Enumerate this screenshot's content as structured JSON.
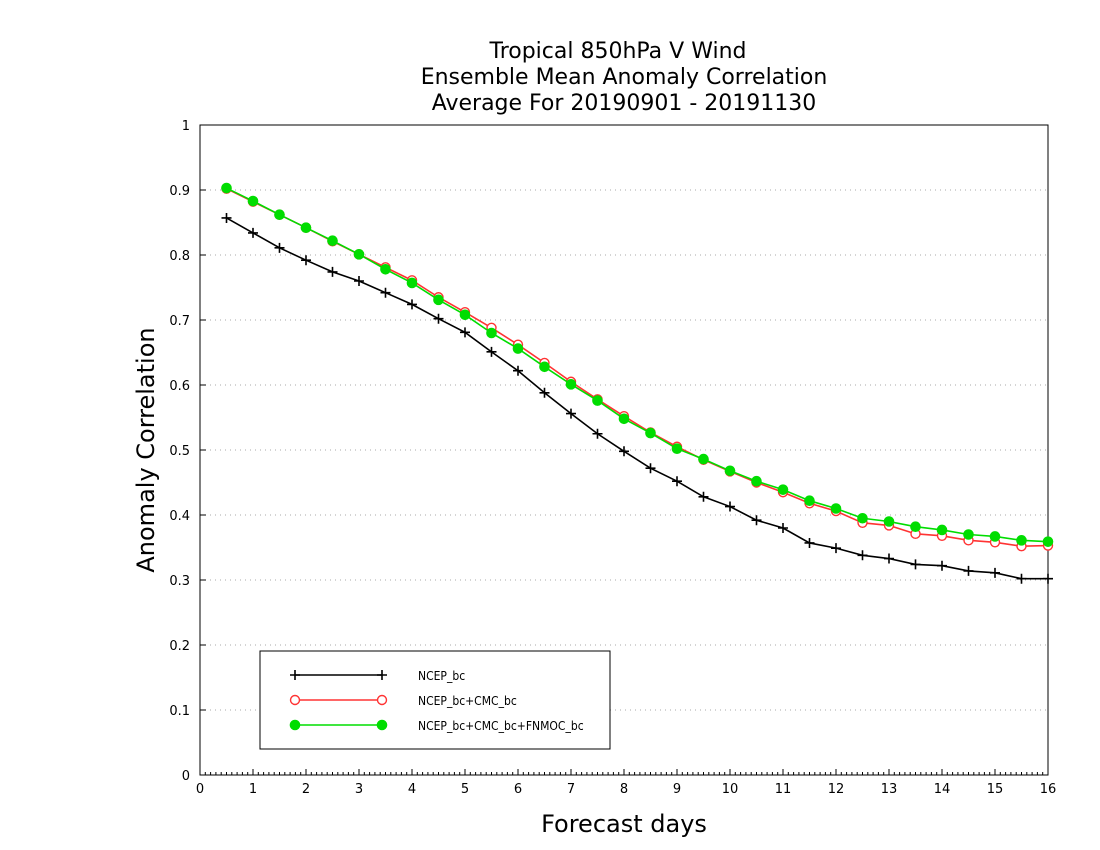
{
  "chart_data": {
    "type": "line",
    "title_lines": [
      "Tropical 850hPa V Wind",
      "Ensemble Mean Anomaly Correlation",
      "Average For 20190901 - 20191130"
    ],
    "xlabel": "Forecast days",
    "ylabel": "Anomaly Correlation",
    "xlim": [
      0,
      16
    ],
    "ylim": [
      0,
      1
    ],
    "xticks": [
      0,
      1,
      2,
      3,
      4,
      5,
      6,
      7,
      8,
      9,
      10,
      11,
      12,
      13,
      14,
      15,
      16
    ],
    "xtick_labels": [
      "0",
      "1",
      "2",
      "3",
      "4",
      "5",
      "6",
      "7",
      "8",
      "9",
      "10",
      "11",
      "12",
      "13",
      "14",
      "15",
      "16"
    ],
    "yticks": [
      0,
      0.1,
      0.2,
      0.3,
      0.4,
      0.5,
      0.6,
      0.7,
      0.8,
      0.9,
      1
    ],
    "ytick_labels": [
      "0",
      "0.1",
      "0.2",
      "0.3",
      "0.4",
      "0.5",
      "0.6",
      "0.7",
      "0.8",
      "0.9",
      "1"
    ],
    "grid": "horizontal dotted",
    "legend_position": "bottom-left",
    "x": [
      0.5,
      1,
      1.5,
      2,
      2.5,
      3,
      3.5,
      4,
      4.5,
      5,
      5.5,
      6,
      6.5,
      7,
      7.5,
      8,
      8.5,
      9,
      9.5,
      10,
      10.5,
      11,
      11.5,
      12,
      12.5,
      13,
      13.5,
      14,
      14.5,
      15,
      15.5,
      16
    ],
    "series": [
      {
        "name": "NCEP_bc",
        "color": "#000000",
        "marker": "plus",
        "values": [
          0.857,
          0.834,
          0.811,
          0.792,
          0.774,
          0.76,
          0.742,
          0.724,
          0.702,
          0.681,
          0.651,
          0.622,
          0.588,
          0.556,
          0.525,
          0.498,
          0.472,
          0.452,
          0.428,
          0.413,
          0.392,
          0.38,
          0.357,
          0.349,
          0.338,
          0.333,
          0.324,
          0.322,
          0.314,
          0.311,
          0.302,
          0.302
        ]
      },
      {
        "name": "NCEP_bc+CMC_bc",
        "color": "#ff3333",
        "marker": "open-circle",
        "values": [
          0.902,
          0.882,
          0.862,
          0.842,
          0.821,
          0.801,
          0.781,
          0.761,
          0.735,
          0.712,
          0.688,
          0.662,
          0.634,
          0.605,
          0.578,
          0.552,
          0.527,
          0.505,
          0.485,
          0.467,
          0.45,
          0.435,
          0.418,
          0.406,
          0.388,
          0.384,
          0.371,
          0.368,
          0.361,
          0.358,
          0.352,
          0.353
        ]
      },
      {
        "name": "NCEP_bc+CMC_bc+FNMOC_bc",
        "color": "#00dd00",
        "marker": "filled-circle",
        "values": [
          0.903,
          0.883,
          0.862,
          0.842,
          0.822,
          0.801,
          0.778,
          0.757,
          0.731,
          0.708,
          0.68,
          0.656,
          0.628,
          0.601,
          0.576,
          0.548,
          0.526,
          0.502,
          0.486,
          0.468,
          0.452,
          0.439,
          0.422,
          0.41,
          0.395,
          0.39,
          0.382,
          0.377,
          0.37,
          0.367,
          0.361,
          0.359
        ]
      }
    ]
  }
}
